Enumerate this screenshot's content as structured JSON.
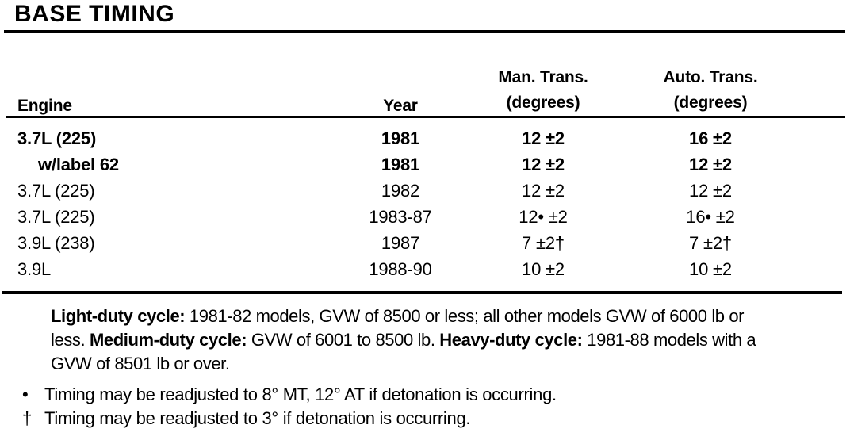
{
  "title": "BASE TIMING",
  "table": {
    "headers": {
      "engine": "Engine",
      "year": "Year",
      "man_trans_line1": "Man. Trans.",
      "man_trans_line2": "(degrees)",
      "auto_trans_line1": "Auto. Trans.",
      "auto_trans_line2": "(degrees)"
    },
    "rows": [
      {
        "engine": "3.7L (225)",
        "indent": false,
        "bold": true,
        "year": "1981",
        "man_trans": "12 ±2",
        "auto_trans": "16 ±2"
      },
      {
        "engine": "w/label 62",
        "indent": true,
        "bold": true,
        "year": "1981",
        "man_trans": "12 ±2",
        "auto_trans": "12 ±2"
      },
      {
        "engine": "3.7L (225)",
        "indent": false,
        "bold": false,
        "year": "1982",
        "man_trans": "12 ±2",
        "auto_trans": "12 ±2"
      },
      {
        "engine": "3.7L (225)",
        "indent": false,
        "bold": false,
        "year": "1983-87",
        "man_trans": "12• ±2",
        "auto_trans": "16• ±2"
      },
      {
        "engine": "3.9L (238)",
        "indent": false,
        "bold": false,
        "year": "1987",
        "man_trans": "7 ±2†",
        "auto_trans": "7 ±2†"
      },
      {
        "engine": "3.9L",
        "indent": false,
        "bold": false,
        "year": "1988-90",
        "man_trans": "10 ±2",
        "auto_trans": "10 ±2"
      }
    ]
  },
  "notes": {
    "duty_cycle_segments": [
      {
        "label": "Light-duty cycle:",
        "text": " 1981-82 models, GVW of 8500 or less; all other models GVW of 6000 lb or less. "
      },
      {
        "label": "Medium-duty cycle:",
        "text": " GVW of 6001 to 8500 lb. "
      },
      {
        "label": "Heavy-duty cycle:",
        "text": " 1981-88 models with a GVW of 8501 lb or over."
      }
    ],
    "footnotes": [
      {
        "marker": "•",
        "text": "Timing may be readjusted to 8° MT, 12° AT if detonation is occurring."
      },
      {
        "marker": "†",
        "text": "Timing may be readjusted to 3° if detonation is occurring."
      }
    ]
  }
}
